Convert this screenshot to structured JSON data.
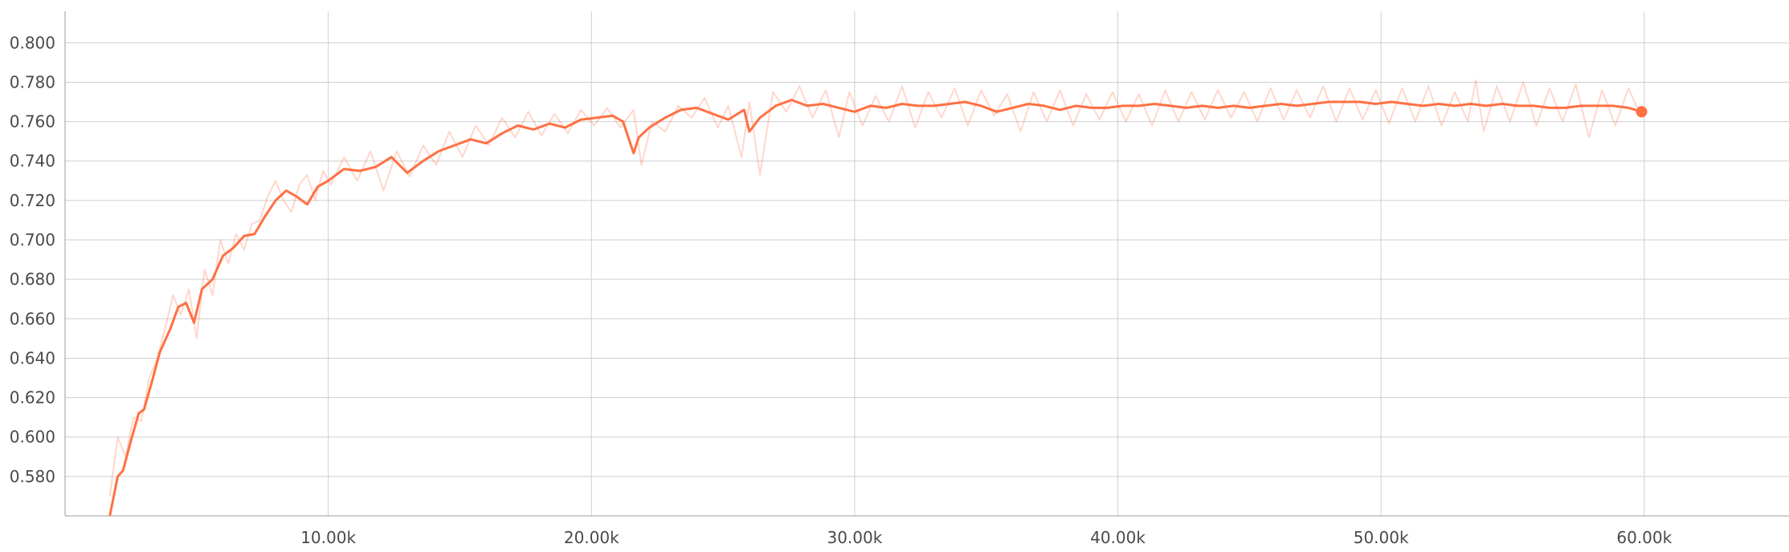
{
  "chart_data": {
    "type": "line",
    "title": "",
    "xlabel": "",
    "ylabel": "",
    "xlim": [
      0,
      65500
    ],
    "ylim": [
      0.56,
      0.816
    ],
    "grid": true,
    "x_ticks": [
      10000,
      20000,
      30000,
      40000,
      50000,
      60000
    ],
    "x_tick_labels": [
      "10.00k",
      "20.00k",
      "30.00k",
      "40.00k",
      "50.00k",
      "60.00k"
    ],
    "y_ticks": [
      0.58,
      0.6,
      0.62,
      0.64,
      0.66,
      0.68,
      0.7,
      0.72,
      0.74,
      0.76,
      0.78,
      0.8
    ],
    "y_tick_labels": [
      "0.580",
      "0.600",
      "0.620",
      "0.640",
      "0.660",
      "0.680",
      "0.700",
      "0.720",
      "0.740",
      "0.760",
      "0.780",
      "0.800"
    ],
    "colors": {
      "smoothed": "#ff7043",
      "raw": "#ff7043",
      "grid": "#cfcfcf",
      "axis": "#9e9e9e"
    },
    "series": [
      {
        "role": "smoothed",
        "x": [
          1700,
          2000,
          2200,
          2500,
          2800,
          3000,
          3300,
          3600,
          4000,
          4300,
          4600,
          4900,
          5200,
          5600,
          6000,
          6400,
          6800,
          7200,
          7600,
          8000,
          8400,
          8800,
          9200,
          9600,
          10000,
          10600,
          11200,
          11800,
          12400,
          13000,
          13600,
          14200,
          14800,
          15400,
          16000,
          16600,
          17200,
          17800,
          18400,
          19000,
          19600,
          20200,
          20800,
          21200,
          21600,
          21800,
          22200,
          22800,
          23400,
          24000,
          24600,
          25200,
          25800,
          26000,
          26400,
          27000,
          27600,
          28200,
          28800,
          29400,
          30000,
          30600,
          31200,
          31800,
          32400,
          33000,
          33600,
          34200,
          34800,
          35400,
          36000,
          36600,
          37200,
          37800,
          38400,
          39000,
          39600,
          40200,
          40800,
          41400,
          42000,
          42600,
          43200,
          43800,
          44400,
          45000,
          45600,
          46200,
          46800,
          47400,
          48000,
          48600,
          49200,
          49800,
          50400,
          51000,
          51600,
          52200,
          52800,
          53400,
          54000,
          54600,
          55200,
          55800,
          56400,
          57000,
          57600,
          58200,
          58800,
          59400,
          59900
        ],
        "y": [
          0.56,
          0.58,
          0.583,
          0.598,
          0.612,
          0.614,
          0.628,
          0.643,
          0.655,
          0.666,
          0.668,
          0.658,
          0.675,
          0.68,
          0.692,
          0.696,
          0.702,
          0.703,
          0.712,
          0.72,
          0.725,
          0.722,
          0.718,
          0.727,
          0.73,
          0.736,
          0.735,
          0.737,
          0.742,
          0.734,
          0.74,
          0.745,
          0.748,
          0.751,
          0.749,
          0.754,
          0.758,
          0.756,
          0.759,
          0.757,
          0.761,
          0.762,
          0.763,
          0.76,
          0.744,
          0.752,
          0.757,
          0.762,
          0.766,
          0.767,
          0.764,
          0.761,
          0.766,
          0.755,
          0.762,
          0.768,
          0.771,
          0.768,
          0.769,
          0.767,
          0.765,
          0.768,
          0.767,
          0.769,
          0.768,
          0.768,
          0.769,
          0.77,
          0.768,
          0.765,
          0.767,
          0.769,
          0.768,
          0.766,
          0.768,
          0.767,
          0.767,
          0.768,
          0.768,
          0.769,
          0.768,
          0.767,
          0.768,
          0.767,
          0.768,
          0.767,
          0.768,
          0.769,
          0.768,
          0.769,
          0.77,
          0.77,
          0.77,
          0.769,
          0.77,
          0.769,
          0.768,
          0.769,
          0.768,
          0.769,
          0.768,
          0.769,
          0.768,
          0.768,
          0.767,
          0.767,
          0.768,
          0.768,
          0.768,
          0.767,
          0.765
        ]
      },
      {
        "role": "raw",
        "x": [
          1700,
          2000,
          2300,
          2600,
          2900,
          3200,
          3500,
          3800,
          4100,
          4400,
          4700,
          5000,
          5300,
          5600,
          5900,
          6200,
          6500,
          6800,
          7100,
          7400,
          7700,
          8000,
          8300,
          8600,
          8900,
          9200,
          9500,
          9800,
          10100,
          10600,
          11100,
          11600,
          12100,
          12600,
          13100,
          13600,
          14100,
          14600,
          15100,
          15600,
          16100,
          16600,
          17100,
          17600,
          18100,
          18600,
          19100,
          19600,
          20100,
          20600,
          21100,
          21600,
          21900,
          22300,
          22800,
          23300,
          23800,
          24300,
          24800,
          25200,
          25700,
          26000,
          26400,
          26900,
          27400,
          27900,
          28400,
          28900,
          29400,
          29800,
          30300,
          30800,
          31300,
          31800,
          32300,
          32800,
          33300,
          33800,
          34300,
          34800,
          35300,
          35800,
          36300,
          36800,
          37300,
          37800,
          38300,
          38800,
          39300,
          39800,
          40300,
          40800,
          41300,
          41800,
          42300,
          42800,
          43300,
          43800,
          44300,
          44800,
          45300,
          45800,
          46300,
          46800,
          47300,
          47800,
          48300,
          48800,
          49300,
          49800,
          50300,
          50800,
          51300,
          51800,
          52300,
          52800,
          53300,
          53600,
          53900,
          54400,
          54900,
          55400,
          55900,
          56400,
          56900,
          57400,
          57900,
          58400,
          58900,
          59400,
          59900
        ],
        "y": [
          0.57,
          0.6,
          0.59,
          0.61,
          0.608,
          0.63,
          0.64,
          0.655,
          0.672,
          0.662,
          0.675,
          0.65,
          0.685,
          0.672,
          0.7,
          0.688,
          0.703,
          0.695,
          0.708,
          0.71,
          0.722,
          0.73,
          0.72,
          0.714,
          0.728,
          0.733,
          0.72,
          0.735,
          0.728,
          0.742,
          0.73,
          0.745,
          0.725,
          0.745,
          0.732,
          0.748,
          0.738,
          0.755,
          0.742,
          0.758,
          0.748,
          0.762,
          0.752,
          0.765,
          0.753,
          0.764,
          0.754,
          0.766,
          0.758,
          0.767,
          0.757,
          0.766,
          0.738,
          0.76,
          0.755,
          0.768,
          0.762,
          0.772,
          0.757,
          0.768,
          0.742,
          0.77,
          0.733,
          0.775,
          0.765,
          0.778,
          0.762,
          0.776,
          0.752,
          0.775,
          0.758,
          0.773,
          0.76,
          0.778,
          0.757,
          0.775,
          0.762,
          0.777,
          0.758,
          0.776,
          0.763,
          0.774,
          0.755,
          0.775,
          0.76,
          0.776,
          0.758,
          0.774,
          0.761,
          0.775,
          0.76,
          0.774,
          0.758,
          0.776,
          0.76,
          0.775,
          0.761,
          0.776,
          0.762,
          0.775,
          0.76,
          0.777,
          0.761,
          0.776,
          0.762,
          0.778,
          0.76,
          0.777,
          0.761,
          0.776,
          0.759,
          0.777,
          0.76,
          0.778,
          0.758,
          0.775,
          0.76,
          0.781,
          0.755,
          0.778,
          0.76,
          0.78,
          0.758,
          0.777,
          0.76,
          0.779,
          0.752,
          0.776,
          0.758,
          0.777,
          0.762
        ]
      }
    ]
  }
}
